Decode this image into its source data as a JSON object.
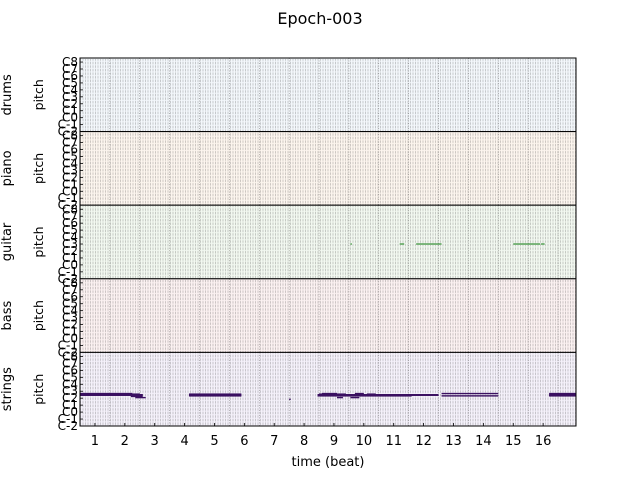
{
  "chart_data": {
    "type": "pianoroll",
    "title": "Epoch-003",
    "xlabel": "time (beat)",
    "x_ticks": [
      "1",
      "2",
      "3",
      "4",
      "5",
      "6",
      "7",
      "8",
      "9",
      "10",
      "11",
      "12",
      "13",
      "14",
      "15",
      "16"
    ],
    "xlim": [
      0.5,
      17.1
    ],
    "pitch_ticks": [
      "C-2",
      "C-1",
      "C0",
      "C1",
      "C2",
      "C3",
      "C4",
      "C5",
      "C6",
      "C7",
      "C8"
    ],
    "pitch_range": [
      0,
      127
    ],
    "ylabel": "pitch",
    "grid": true,
    "tracks": [
      {
        "name": "drums",
        "color": "#4a78b3",
        "bg": "#f3f7fb",
        "notes": []
      },
      {
        "name": "piano",
        "color": "#cc8a33",
        "bg": "#fcf5ee",
        "notes": []
      },
      {
        "name": "guitar",
        "color": "#4a9a4a",
        "bg": "#f2f8f0",
        "notes": [
          {
            "pitch": 60,
            "start": 9.55,
            "end": 9.6
          },
          {
            "pitch": 60,
            "start": 11.2,
            "end": 11.35
          },
          {
            "pitch": 60,
            "start": 11.75,
            "end": 12.6
          },
          {
            "pitch": 60,
            "start": 15.0,
            "end": 15.9
          },
          {
            "pitch": 60,
            "start": 15.93,
            "end": 16.05
          }
        ]
      },
      {
        "name": "bass",
        "color": "#b24a4a",
        "bg": "#fbf1f1",
        "notes": []
      },
      {
        "name": "strings",
        "color": "#3a1060",
        "bg": "#f4f1fa",
        "notes": [
          {
            "pitch": 56,
            "start": 0.5,
            "end": 2.25
          },
          {
            "pitch": 55,
            "start": 0.5,
            "end": 2.5
          },
          {
            "pitch": 54,
            "start": 0.5,
            "end": 2.6
          },
          {
            "pitch": 53,
            "start": 0.5,
            "end": 2.6
          },
          {
            "pitch": 51,
            "start": 2.2,
            "end": 2.6
          },
          {
            "pitch": 49,
            "start": 2.35,
            "end": 2.7
          },
          {
            "pitch": 55,
            "start": 4.15,
            "end": 5.9
          },
          {
            "pitch": 54,
            "start": 4.15,
            "end": 5.9
          },
          {
            "pitch": 53,
            "start": 4.15,
            "end": 5.9
          },
          {
            "pitch": 52,
            "start": 4.15,
            "end": 5.9
          },
          {
            "pitch": 46,
            "start": 7.5,
            "end": 7.55
          },
          {
            "pitch": 56,
            "start": 8.6,
            "end": 9.1
          },
          {
            "pitch": 55,
            "start": 8.5,
            "end": 9.4
          },
          {
            "pitch": 54,
            "start": 8.45,
            "end": 12.5
          },
          {
            "pitch": 53,
            "start": 8.45,
            "end": 12.5
          },
          {
            "pitch": 52,
            "start": 8.45,
            "end": 11.6
          },
          {
            "pitch": 49,
            "start": 9.1,
            "end": 9.3
          },
          {
            "pitch": 49,
            "start": 9.55,
            "end": 9.85
          },
          {
            "pitch": 56,
            "start": 9.7,
            "end": 10.0
          },
          {
            "pitch": 55,
            "start": 10.1,
            "end": 10.4
          },
          {
            "pitch": 56,
            "start": 12.6,
            "end": 14.5
          },
          {
            "pitch": 52,
            "start": 12.6,
            "end": 14.5
          },
          {
            "pitch": 56,
            "start": 16.2,
            "end": 17.1
          },
          {
            "pitch": 54,
            "start": 16.2,
            "end": 17.1
          },
          {
            "pitch": 53,
            "start": 16.2,
            "end": 17.1
          },
          {
            "pitch": 52,
            "start": 16.2,
            "end": 17.1
          }
        ]
      }
    ]
  }
}
